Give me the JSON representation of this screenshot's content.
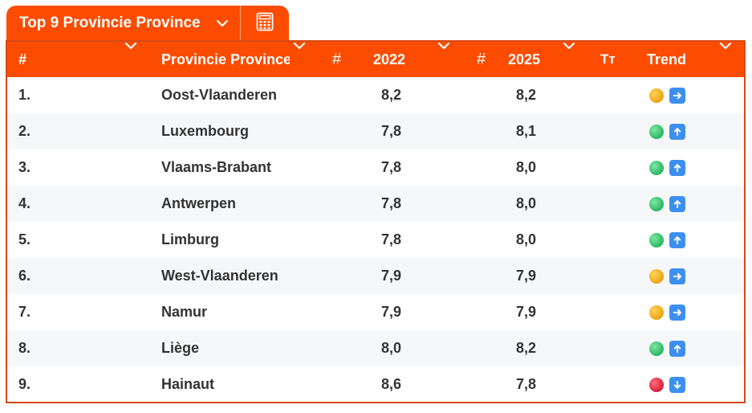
{
  "tabs": {
    "main_label": "Top 9 Provincie Province",
    "calculator_icon": "calculator-icon"
  },
  "columns": {
    "rank": "#",
    "province": "Provincie Province",
    "hash_2022": "#",
    "y2022": "2022",
    "hash_2025": "#",
    "y2025": "2025",
    "text_icon": "Tт",
    "trend": "Trend"
  },
  "colors": {
    "accent": "#fc4c02",
    "border": "#d44a17",
    "up": "#23b45c",
    "flat": "#e8a10f",
    "down": "#d61a35",
    "arrow_box": "#3d8ff0"
  },
  "rows": [
    {
      "rank": "1.",
      "province": "Oost-Vlaanderen",
      "y2022": "8,2",
      "y2025": "8,2",
      "trend": "flat"
    },
    {
      "rank": "2.",
      "province": "Luxembourg",
      "y2022": "7,8",
      "y2025": "8,1",
      "trend": "up"
    },
    {
      "rank": "3.",
      "province": "Vlaams-Brabant",
      "y2022": "7,8",
      "y2025": "8,0",
      "trend": "up"
    },
    {
      "rank": "4.",
      "province": "Antwerpen",
      "y2022": "7,8",
      "y2025": "8,0",
      "trend": "up"
    },
    {
      "rank": "5.",
      "province": "Limburg",
      "y2022": "7,8",
      "y2025": "8,0",
      "trend": "up"
    },
    {
      "rank": "6.",
      "province": "West-Vlaanderen",
      "y2022": "7,9",
      "y2025": "7,9",
      "trend": "flat"
    },
    {
      "rank": "7.",
      "province": "Namur",
      "y2022": "7,9",
      "y2025": "7,9",
      "trend": "flat"
    },
    {
      "rank": "8.",
      "province": "Liège",
      "y2022": "8,0",
      "y2025": "8,2",
      "trend": "up"
    },
    {
      "rank": "9.",
      "province": "Hainaut",
      "y2022": "8,6",
      "y2025": "7,8",
      "trend": "down"
    }
  ]
}
